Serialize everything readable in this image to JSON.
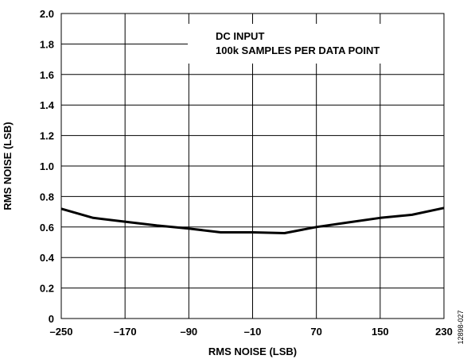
{
  "chart_data": {
    "type": "line",
    "title": "",
    "xlabel": "RMS NOISE (LSB)",
    "ylabel": "RMS NOISE (LSB)",
    "xlim": [
      -250,
      230
    ],
    "ylim": [
      0,
      2.0
    ],
    "xticks": [
      -250,
      -170,
      -90,
      -10,
      70,
      150,
      230
    ],
    "xtick_labels": [
      "–250",
      "–170",
      "–90",
      "–10",
      "70",
      "150",
      "230"
    ],
    "yticks": [
      0,
      0.2,
      0.4,
      0.6,
      0.8,
      1.0,
      1.2,
      1.4,
      1.6,
      1.8,
      2.0
    ],
    "ytick_labels": [
      "0",
      "0.2",
      "0.4",
      "0.6",
      "0.8",
      "1.0",
      "1.2",
      "1.4",
      "1.6",
      "1.8",
      "2.0"
    ],
    "grid": true,
    "series": [
      {
        "x": [
          -250,
          -210,
          -170,
          -130,
          -90,
          -50,
          -10,
          30,
          70,
          110,
          150,
          190,
          230
        ],
        "values": [
          0.72,
          0.66,
          0.635,
          0.61,
          0.59,
          0.565,
          0.565,
          0.56,
          0.6,
          0.63,
          0.66,
          0.68,
          0.725
        ]
      }
    ],
    "annotations": [
      "DC INPUT",
      "100k SAMPLES PER DATA POINT"
    ],
    "figure_id": "12898-027",
    "colors": {
      "line": "#000000",
      "grid": "#000000",
      "background": "#ffffff"
    }
  }
}
